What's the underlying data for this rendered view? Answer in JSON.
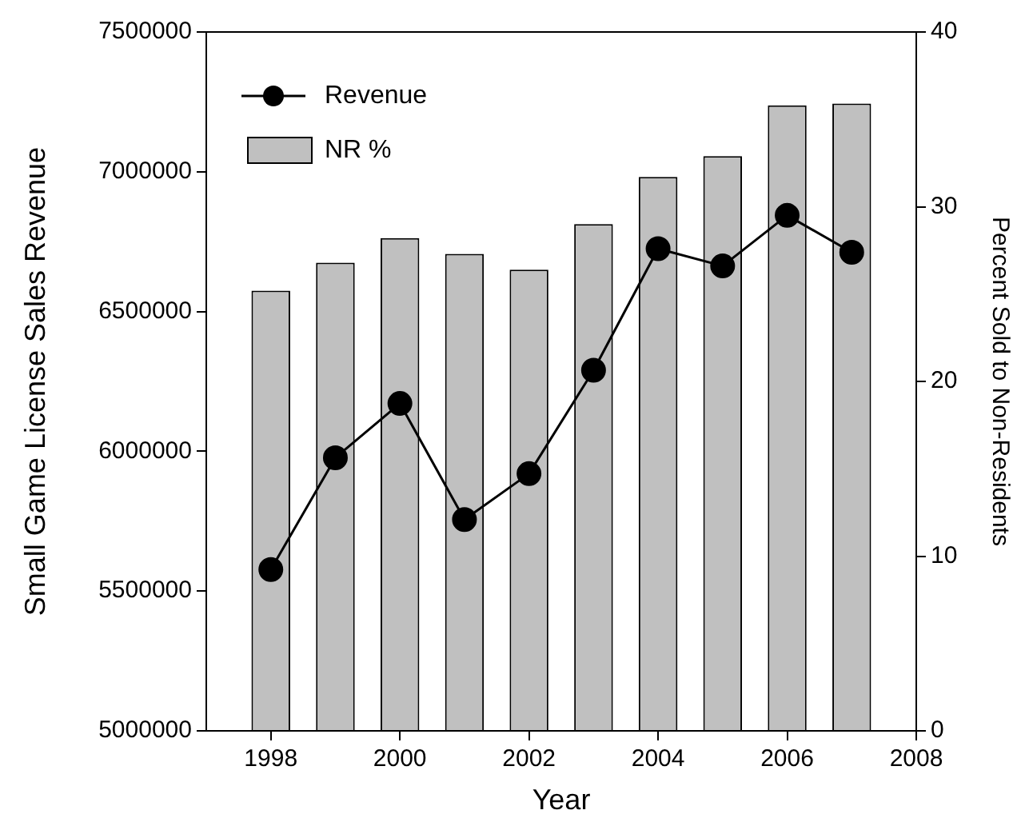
{
  "chart_data": {
    "type": "bar",
    "xlabel": "Year",
    "ylabel": "Small Game License Sales Revenue",
    "y2label": "Percent Sold to Non-Residents",
    "x": [
      1998,
      1999,
      2000,
      2001,
      2002,
      2003,
      2004,
      2005,
      2006,
      2007
    ],
    "series": [
      {
        "name": "Revenue",
        "type": "line",
        "color": "#000000",
        "marker": "circle",
        "line_style": "solid",
        "values": [
          5577000,
          5977000,
          6171000,
          5756000,
          5920000,
          6290000,
          6725000,
          6663000,
          6844000,
          6712000
        ]
      },
      {
        "name": "NR %",
        "axis": "y2",
        "color": "#c0c0c0",
        "values": [
          25.2,
          26.8,
          28.2,
          27.3,
          26.4,
          29.0,
          31.7,
          32.9,
          35.8,
          35.9
        ]
      }
    ],
    "xlim": [
      1997,
      2008
    ],
    "xticks": [
      1998,
      2000,
      2002,
      2004,
      2006,
      2008
    ],
    "ylim": [
      5000000,
      7500000
    ],
    "yticks": [
      5000000,
      5500000,
      6000000,
      6500000,
      7000000,
      7500000
    ],
    "y2lim": [
      0,
      40
    ],
    "y2ticks": [
      0,
      10,
      20,
      30,
      40
    ],
    "grid": false,
    "legend": "top left"
  }
}
